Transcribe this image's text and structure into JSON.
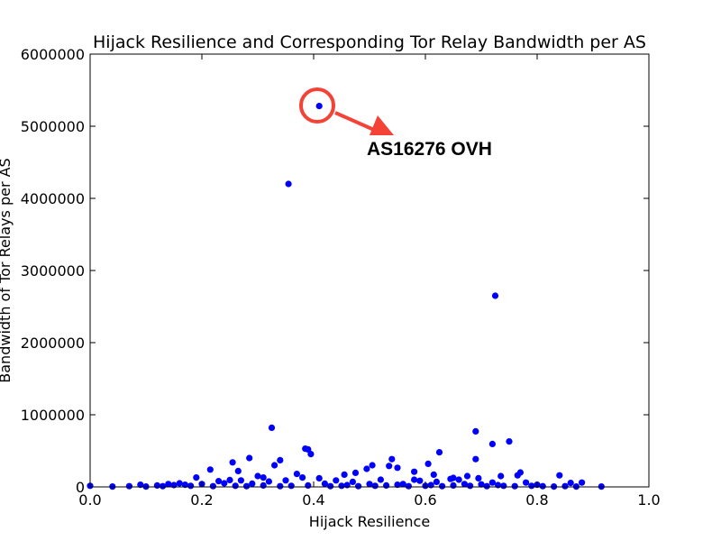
{
  "chart_data": {
    "type": "scatter",
    "title": "Hijack Resilience and Corresponding Tor Relay Bandwidth per AS",
    "xlabel": "Hijack Resilience",
    "ylabel": "Bandwidth of Tor Relays per AS",
    "xlim": [
      0.0,
      1.0
    ],
    "ylim": [
      0,
      6000000
    ],
    "xticks": [
      "0.0",
      "0.2",
      "0.4",
      "0.6",
      "0.8",
      "1.0"
    ],
    "yticks": [
      "0",
      "1000000",
      "2000000",
      "3000000",
      "4000000",
      "5000000",
      "6000000"
    ],
    "grid": false,
    "legend": "none",
    "marker_color": "#0000ff",
    "annotation": {
      "text": "AS16276 OVH",
      "color": "#f44336",
      "point": [
        0.41,
        5280000
      ]
    },
    "points": [
      [
        0.41,
        5280000
      ],
      [
        0.355,
        4200000
      ],
      [
        0.725,
        2650000
      ],
      [
        0.325,
        820000
      ],
      [
        0.69,
        770000
      ],
      [
        0.75,
        630000
      ],
      [
        0.72,
        595000
      ],
      [
        0.385,
        530000
      ],
      [
        0.39,
        520000
      ],
      [
        0.395,
        455000
      ],
      [
        0.625,
        480000
      ],
      [
        0.285,
        400000
      ],
      [
        0.54,
        385000
      ],
      [
        0.34,
        370000
      ],
      [
        0.255,
        340000
      ],
      [
        0.69,
        385000
      ],
      [
        0.605,
        320000
      ],
      [
        0.505,
        300000
      ],
      [
        0.33,
        300000
      ],
      [
        0.535,
        290000
      ],
      [
        0.55,
        265000
      ],
      [
        0.495,
        250000
      ],
      [
        0.215,
        240000
      ],
      [
        0.265,
        220000
      ],
      [
        0.58,
        210000
      ],
      [
        0.77,
        200000
      ],
      [
        0.765,
        160000
      ],
      [
        0.475,
        195000
      ],
      [
        0.37,
        180000
      ],
      [
        0.455,
        170000
      ],
      [
        0.615,
        170000
      ],
      [
        0.84,
        160000
      ],
      [
        0.735,
        150000
      ],
      [
        0.675,
        150000
      ],
      [
        0.3,
        150000
      ],
      [
        0.31,
        130000
      ],
      [
        0.19,
        130000
      ],
      [
        0.65,
        125000
      ],
      [
        0.38,
        130000
      ],
      [
        0.41,
        120000
      ],
      [
        0.695,
        120000
      ],
      [
        0.645,
        110000
      ],
      [
        0.52,
        100000
      ],
      [
        0.58,
        100000
      ],
      [
        0.66,
        100000
      ],
      [
        0.25,
        95000
      ],
      [
        0.27,
        90000
      ],
      [
        0.35,
        90000
      ],
      [
        0.44,
        90000
      ],
      [
        0.59,
        85000
      ],
      [
        0.23,
        80000
      ],
      [
        0.32,
        75000
      ],
      [
        0.47,
        70000
      ],
      [
        0.62,
        70000
      ],
      [
        0.72,
        60000
      ],
      [
        0.78,
        60000
      ],
      [
        0.88,
        60000
      ],
      [
        0.86,
        55000
      ],
      [
        0.16,
        50000
      ],
      [
        0.14,
        40000
      ],
      [
        0.2,
        40000
      ],
      [
        0.24,
        50000
      ],
      [
        0.29,
        45000
      ],
      [
        0.42,
        45000
      ],
      [
        0.5,
        40000
      ],
      [
        0.56,
        40000
      ],
      [
        0.67,
        40000
      ],
      [
        0.7,
        35000
      ],
      [
        0.8,
        30000
      ],
      [
        0.12,
        20000
      ],
      [
        0.09,
        30000
      ],
      [
        0.0,
        15000
      ],
      [
        0.04,
        5000
      ],
      [
        0.07,
        10000
      ],
      [
        0.1,
        5000
      ],
      [
        0.13,
        10000
      ],
      [
        0.18,
        15000
      ],
      [
        0.22,
        10000
      ],
      [
        0.26,
        15000
      ],
      [
        0.28,
        10000
      ],
      [
        0.31,
        20000
      ],
      [
        0.34,
        10000
      ],
      [
        0.36,
        15000
      ],
      [
        0.39,
        20000
      ],
      [
        0.43,
        10000
      ],
      [
        0.45,
        15000
      ],
      [
        0.48,
        10000
      ],
      [
        0.51,
        15000
      ],
      [
        0.53,
        20000
      ],
      [
        0.57,
        10000
      ],
      [
        0.6,
        15000
      ],
      [
        0.63,
        10000
      ],
      [
        0.65,
        20000
      ],
      [
        0.68,
        15000
      ],
      [
        0.71,
        10000
      ],
      [
        0.74,
        15000
      ],
      [
        0.76,
        10000
      ],
      [
        0.79,
        15000
      ],
      [
        0.81,
        10000
      ],
      [
        0.83,
        5000
      ],
      [
        0.85,
        10000
      ],
      [
        0.87,
        5000
      ],
      [
        0.915,
        5000
      ],
      [
        0.15,
        25000
      ],
      [
        0.17,
        30000
      ],
      [
        0.46,
        25000
      ],
      [
        0.55,
        30000
      ],
      [
        0.61,
        25000
      ],
      [
        0.73,
        25000
      ]
    ]
  }
}
